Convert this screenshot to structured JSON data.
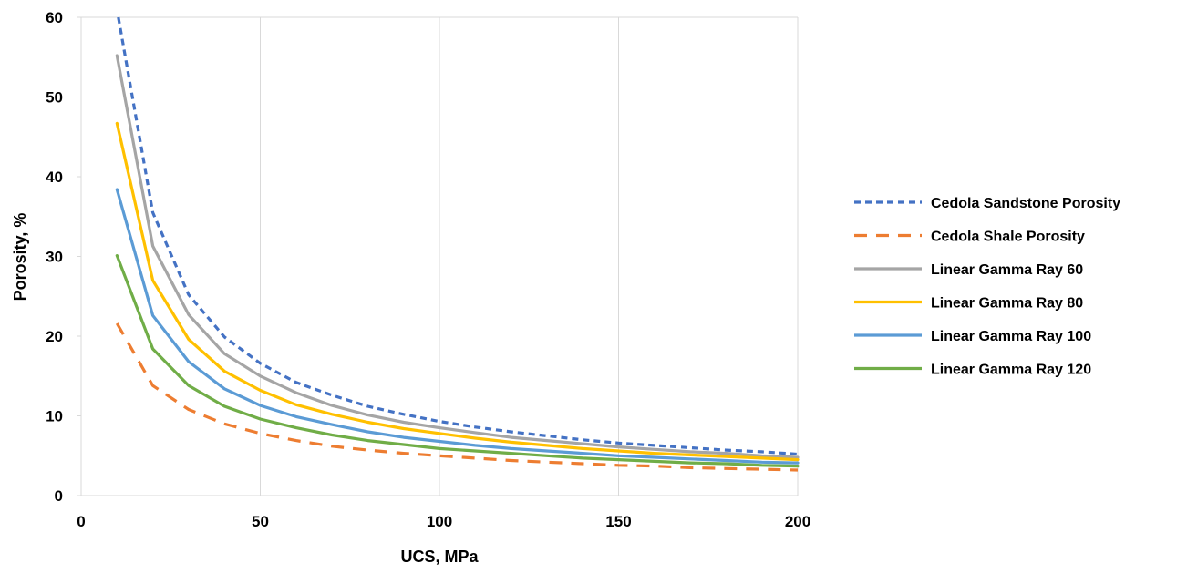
{
  "chart_data": {
    "type": "line",
    "title": "",
    "xlabel": "UCS, MPa",
    "ylabel": "Porosity, %",
    "xlim": [
      0,
      200
    ],
    "ylim": [
      0,
      60
    ],
    "xticks": [
      0,
      50,
      100,
      150,
      200
    ],
    "yticks": [
      0,
      10,
      20,
      30,
      40,
      50,
      60
    ],
    "grid": "vertical",
    "legend_position": "right",
    "series": [
      {
        "name": "Cedola Sandstone Porosity",
        "color": "#4472C4",
        "style": "dotted",
        "x": [
          10,
          20,
          30,
          40,
          50,
          60,
          70,
          80,
          90,
          100,
          110,
          120,
          130,
          140,
          150,
          160,
          170,
          180,
          190,
          200
        ],
        "y": [
          61,
          35.5,
          25.2,
          19.9,
          16.6,
          14.2,
          12.6,
          11.2,
          10.2,
          9.3,
          8.6,
          8.0,
          7.5,
          7.0,
          6.6,
          6.3,
          6.0,
          5.7,
          5.5,
          5.2
        ]
      },
      {
        "name": "Cedola Shale Porosity",
        "color": "#ED7D31",
        "style": "dashed",
        "x": [
          10,
          20,
          30,
          40,
          50,
          60,
          70,
          80,
          90,
          100,
          110,
          120,
          130,
          140,
          150,
          160,
          170,
          180,
          190,
          200
        ],
        "y": [
          21.6,
          13.8,
          10.8,
          9.0,
          7.8,
          6.9,
          6.2,
          5.7,
          5.3,
          5.0,
          4.7,
          4.4,
          4.2,
          4.0,
          3.8,
          3.7,
          3.5,
          3.4,
          3.3,
          3.2
        ]
      },
      {
        "name": "Linear Gamma Ray 60",
        "color": "#A5A5A5",
        "style": "solid",
        "x": [
          10,
          20,
          30,
          40,
          50,
          60,
          70,
          80,
          90,
          100,
          110,
          120,
          130,
          140,
          150,
          160,
          170,
          180,
          190,
          200
        ],
        "y": [
          55.2,
          31.3,
          22.7,
          17.8,
          15.0,
          12.9,
          11.3,
          10.1,
          9.2,
          8.5,
          7.9,
          7.3,
          6.9,
          6.5,
          6.1,
          5.8,
          5.5,
          5.3,
          5.0,
          4.8
        ]
      },
      {
        "name": "Linear Gamma Ray 80",
        "color": "#FFC000",
        "style": "solid",
        "x": [
          10,
          20,
          30,
          40,
          50,
          60,
          70,
          80,
          90,
          100,
          110,
          120,
          130,
          140,
          150,
          160,
          170,
          180,
          190,
          200
        ],
        "y": [
          46.7,
          27.0,
          19.6,
          15.6,
          13.2,
          11.4,
          10.2,
          9.2,
          8.4,
          7.8,
          7.2,
          6.7,
          6.3,
          5.9,
          5.6,
          5.3,
          5.1,
          4.9,
          4.7,
          4.5
        ]
      },
      {
        "name": "Linear Gamma Ray 100",
        "color": "#5B9BD5",
        "style": "solid",
        "x": [
          10,
          20,
          30,
          40,
          50,
          60,
          70,
          80,
          90,
          100,
          110,
          120,
          130,
          140,
          150,
          160,
          170,
          180,
          190,
          200
        ],
        "y": [
          38.4,
          22.6,
          16.8,
          13.4,
          11.3,
          9.9,
          8.9,
          8.0,
          7.3,
          6.8,
          6.3,
          5.9,
          5.6,
          5.3,
          5.0,
          4.8,
          4.6,
          4.4,
          4.2,
          4.1
        ]
      },
      {
        "name": "Linear Gamma Ray 120",
        "color": "#70AD47",
        "style": "solid",
        "x": [
          10,
          20,
          30,
          40,
          50,
          60,
          70,
          80,
          90,
          100,
          110,
          120,
          130,
          140,
          150,
          160,
          170,
          180,
          190,
          200
        ],
        "y": [
          30.1,
          18.4,
          13.8,
          11.2,
          9.6,
          8.5,
          7.6,
          6.9,
          6.4,
          5.9,
          5.6,
          5.3,
          5.0,
          4.7,
          4.5,
          4.3,
          4.1,
          4.0,
          3.8,
          3.7
        ]
      }
    ]
  }
}
